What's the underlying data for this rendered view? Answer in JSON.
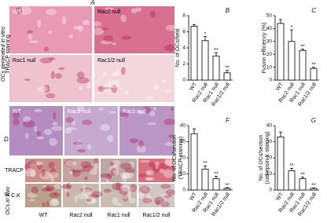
{
  "figure": {
    "panel_a": {
      "letter": "A",
      "side_label": [
        "OCs generated in vitro",
        "TRACP staining"
      ],
      "images": [
        "WT",
        "Rac2 null",
        "Rac1 null",
        "Rac1/2 null"
      ]
    },
    "panel_d": {
      "letter": "D",
      "images": [
        "WT",
        "Rac2 null",
        "Rac1 null"
      ]
    },
    "panel_e": {
      "letter": "E.",
      "side_label": "OCs in vivo",
      "rows": [
        "TRACP",
        "C.K"
      ],
      "columns": [
        "WT",
        "Rac2 null",
        "Rac1 null",
        "Rac1/2 null"
      ]
    }
  },
  "chart_data": [
    {
      "type": "bar",
      "panel": "B",
      "ylabel": [
        "No. of OCs/field"
      ],
      "categories": [
        "WT",
        "Rac2 null",
        "Rac1 null",
        "Rac1/2 null"
      ],
      "values": [
        6.7,
        4.9,
        3.0,
        0.9
      ],
      "errors": [
        0.2,
        0.5,
        0.4,
        0.3
      ],
      "annotations": [
        null,
        "*",
        "**",
        "**"
      ],
      "ylim": [
        0,
        8
      ],
      "yticks": [
        0,
        2,
        4,
        6,
        8
      ],
      "color": "#ffffff"
    },
    {
      "type": "bar",
      "panel": "C",
      "ylabel": [
        "Fusion efficiency (%)"
      ],
      "categories": [
        "WT",
        "Rac2 null",
        "Rac1 null",
        "Rac1/2 null"
      ],
      "values": [
        44,
        30,
        23,
        9
      ],
      "errors": [
        3,
        9,
        1,
        1
      ],
      "annotations": [
        null,
        "*",
        "**",
        "**"
      ],
      "ylim": [
        0,
        50
      ],
      "yticks": [
        0,
        10,
        20,
        30,
        40,
        50
      ],
      "color": "#ffffff"
    },
    {
      "type": "bar",
      "panel": "F",
      "ylabel": [
        "No. of OCs/section",
        "(TRACP staining)"
      ],
      "categories": [
        "WT",
        "Rac2 null",
        "Rac1 null",
        "Rac1/2 null"
      ],
      "values": [
        35,
        13,
        7,
        1
      ],
      "errors": [
        3,
        2,
        1.5,
        0.5
      ],
      "annotations": [
        null,
        "**",
        "**",
        "**"
      ],
      "ylim": [
        0,
        40
      ],
      "yticks": [
        0,
        10,
        20,
        30,
        40
      ],
      "color": "#ffffff"
    },
    {
      "type": "bar",
      "panel": "G",
      "ylabel": [
        "No. of OCs/section",
        "(cathepsin K staining)"
      ],
      "categories": [
        "WT",
        "Rac2 null",
        "Rac1 null",
        "Rac1/2 null"
      ],
      "values": [
        33,
        12,
        7,
        1
      ],
      "errors": [
        3,
        1.5,
        1,
        0.3
      ],
      "annotations": [
        null,
        "**",
        "**",
        "**"
      ],
      "ylim": [
        0,
        40
      ],
      "yticks": [
        0,
        10,
        20,
        30,
        40
      ],
      "color": "#ffffff"
    }
  ]
}
